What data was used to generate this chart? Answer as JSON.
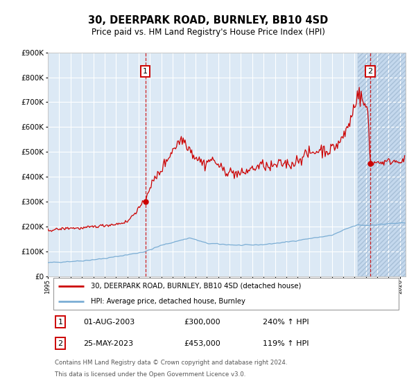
{
  "title": "30, DEERPARK ROAD, BURNLEY, BB10 4SD",
  "subtitle": "Price paid vs. HM Land Registry's House Price Index (HPI)",
  "background_color": "#dce9f5",
  "plot_bg_color": "#dce9f5",
  "grid_color": "#ffffff",
  "red_line_color": "#cc0000",
  "blue_line_color": "#7aadd4",
  "marker_color": "#cc0000",
  "dashed_line_color": "#cc0000",
  "annotation_box_color": "#cc0000",
  "ylim": [
    0,
    900000
  ],
  "xlim_start": 1995.0,
  "xlim_end": 2026.5,
  "hatch_start": 2022.3,
  "transaction1_x": 2003.583,
  "transaction1_y": 300000,
  "transaction2_x": 2023.38,
  "transaction2_y": 453000,
  "transaction1_date": "01-AUG-2003",
  "transaction1_price": "£300,000",
  "transaction1_hpi": "240% ↑ HPI",
  "transaction2_date": "25-MAY-2023",
  "transaction2_price": "£453,000",
  "transaction2_hpi": "119% ↑ HPI",
  "legend_line1": "30, DEERPARK ROAD, BURNLEY, BB10 4SD (detached house)",
  "legend_line2": "HPI: Average price, detached house, Burnley",
  "footer1": "Contains HM Land Registry data © Crown copyright and database right 2024.",
  "footer2": "This data is licensed under the Open Government Licence v3.0.",
  "ytick_labels": [
    "£0",
    "£100K",
    "£200K",
    "£300K",
    "£400K",
    "£500K",
    "£600K",
    "£700K",
    "£800K",
    "£900K"
  ],
  "ytick_values": [
    0,
    100000,
    200000,
    300000,
    400000,
    500000,
    600000,
    700000,
    800000,
    900000
  ]
}
